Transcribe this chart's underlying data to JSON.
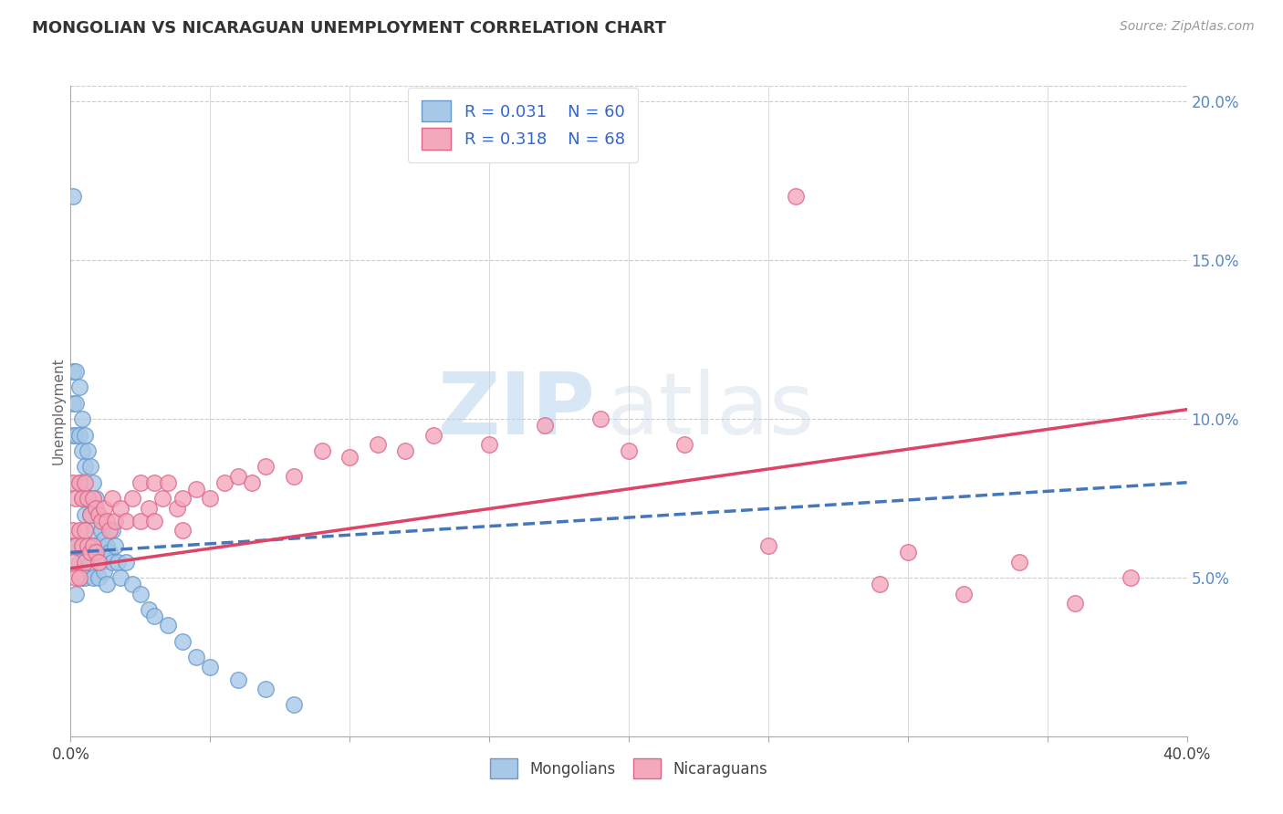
{
  "title": "MONGOLIAN VS NICARAGUAN UNEMPLOYMENT CORRELATION CHART",
  "source": "Source: ZipAtlas.com",
  "ylabel": "Unemployment",
  "xlim": [
    0.0,
    0.4
  ],
  "ylim": [
    0.0,
    0.205
  ],
  "xticks": [
    0.0,
    0.05,
    0.1,
    0.15,
    0.2,
    0.25,
    0.3,
    0.35,
    0.4
  ],
  "xticklabels": [
    "0.0%",
    "",
    "",
    "",
    "",
    "",
    "",
    "",
    "40.0%"
  ],
  "yticks_right": [
    0.05,
    0.1,
    0.15,
    0.2
  ],
  "yticklabels_right": [
    "5.0%",
    "10.0%",
    "15.0%",
    "20.0%"
  ],
  "mongolian_color": "#a8c8e8",
  "nicaraguan_color": "#f4a8bc",
  "mongolian_edge": "#6699cc",
  "nicaraguan_edge": "#dd6688",
  "trend_mongolian_color": "#4477bb",
  "trend_nicaraguan_color": "#dd4466",
  "background_color": "#ffffff",
  "grid_color": "#cccccc",
  "legend_R1": "R = 0.031",
  "legend_N1": "N = 60",
  "legend_R2": "R = 0.318",
  "legend_N2": "N = 68",
  "watermark_zip": "ZIP",
  "watermark_atlas": "atlas",
  "trend_mongol_x0": 0.0,
  "trend_mongol_y0": 0.058,
  "trend_mongol_x1": 0.4,
  "trend_mongol_y1": 0.08,
  "trend_nicar_x0": 0.0,
  "trend_nicar_y0": 0.053,
  "trend_nicar_x1": 0.4,
  "trend_nicar_y1": 0.103,
  "mongolian_x": [
    0.001,
    0.001,
    0.001,
    0.001,
    0.001,
    0.002,
    0.002,
    0.002,
    0.002,
    0.002,
    0.003,
    0.003,
    0.003,
    0.003,
    0.004,
    0.004,
    0.004,
    0.004,
    0.005,
    0.005,
    0.005,
    0.005,
    0.006,
    0.006,
    0.006,
    0.007,
    0.007,
    0.007,
    0.008,
    0.008,
    0.008,
    0.009,
    0.009,
    0.01,
    0.01,
    0.01,
    0.011,
    0.011,
    0.012,
    0.012,
    0.013,
    0.013,
    0.014,
    0.015,
    0.015,
    0.016,
    0.017,
    0.018,
    0.02,
    0.022,
    0.025,
    0.028,
    0.03,
    0.035,
    0.04,
    0.045,
    0.05,
    0.06,
    0.07,
    0.08
  ],
  "mongolian_y": [
    0.17,
    0.115,
    0.105,
    0.095,
    0.06,
    0.115,
    0.105,
    0.095,
    0.06,
    0.045,
    0.11,
    0.095,
    0.08,
    0.055,
    0.1,
    0.09,
    0.075,
    0.05,
    0.095,
    0.085,
    0.07,
    0.05,
    0.09,
    0.075,
    0.06,
    0.085,
    0.07,
    0.055,
    0.08,
    0.065,
    0.05,
    0.075,
    0.06,
    0.07,
    0.06,
    0.05,
    0.065,
    0.055,
    0.062,
    0.052,
    0.06,
    0.048,
    0.058,
    0.065,
    0.055,
    0.06,
    0.055,
    0.05,
    0.055,
    0.048,
    0.045,
    0.04,
    0.038,
    0.035,
    0.03,
    0.025,
    0.022,
    0.018,
    0.015,
    0.01
  ],
  "nicaraguan_x": [
    0.001,
    0.001,
    0.001,
    0.002,
    0.002,
    0.002,
    0.003,
    0.003,
    0.003,
    0.004,
    0.004,
    0.005,
    0.005,
    0.005,
    0.006,
    0.006,
    0.007,
    0.007,
    0.008,
    0.008,
    0.009,
    0.009,
    0.01,
    0.01,
    0.011,
    0.012,
    0.013,
    0.014,
    0.015,
    0.016,
    0.018,
    0.02,
    0.022,
    0.025,
    0.025,
    0.028,
    0.03,
    0.03,
    0.033,
    0.035,
    0.038,
    0.04,
    0.04,
    0.045,
    0.05,
    0.055,
    0.06,
    0.065,
    0.07,
    0.08,
    0.09,
    0.1,
    0.11,
    0.12,
    0.13,
    0.15,
    0.17,
    0.19,
    0.22,
    0.26,
    0.3,
    0.34,
    0.38,
    0.2,
    0.25,
    0.29,
    0.32,
    0.36
  ],
  "nicaraguan_y": [
    0.08,
    0.065,
    0.055,
    0.075,
    0.06,
    0.05,
    0.08,
    0.065,
    0.05,
    0.075,
    0.06,
    0.08,
    0.065,
    0.055,
    0.075,
    0.06,
    0.07,
    0.058,
    0.075,
    0.06,
    0.072,
    0.058,
    0.07,
    0.055,
    0.068,
    0.072,
    0.068,
    0.065,
    0.075,
    0.068,
    0.072,
    0.068,
    0.075,
    0.08,
    0.068,
    0.072,
    0.08,
    0.068,
    0.075,
    0.08,
    0.072,
    0.075,
    0.065,
    0.078,
    0.075,
    0.08,
    0.082,
    0.08,
    0.085,
    0.082,
    0.09,
    0.088,
    0.092,
    0.09,
    0.095,
    0.092,
    0.098,
    0.1,
    0.092,
    0.17,
    0.058,
    0.055,
    0.05,
    0.09,
    0.06,
    0.048,
    0.045,
    0.042
  ]
}
